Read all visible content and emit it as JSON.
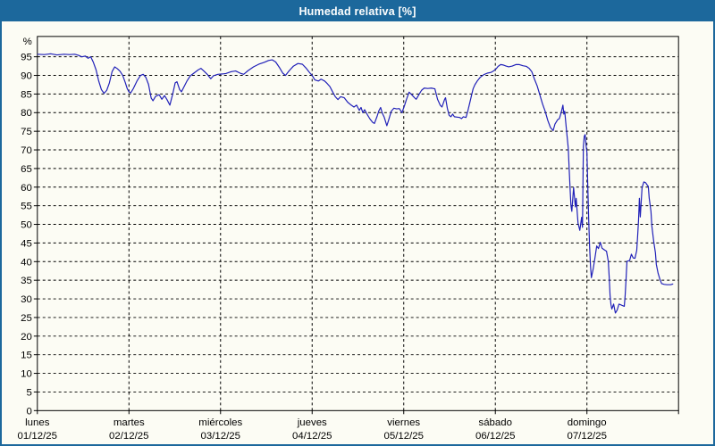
{
  "header": {
    "title": "Humedad relativa [%]"
  },
  "colors": {
    "accent_blue": "#1c689c",
    "background": "#fcfcf4",
    "line_blue": "#2020b8",
    "grid_black": "#000000"
  },
  "chart_data": {
    "type": "line",
    "title": "Humedad relativa [%]",
    "ylabel": "%",
    "ylim": [
      0,
      100.4
    ],
    "y_tick_step": 5,
    "y_ticks": [
      0,
      5,
      10,
      15,
      20,
      25,
      30,
      35,
      40,
      45,
      50,
      55,
      60,
      65,
      70,
      75,
      80,
      85,
      90,
      95
    ],
    "grid": "dashed",
    "legend_position": "none",
    "x_days": [
      {
        "name": "lunes",
        "date": "01/12/25"
      },
      {
        "name": "martes",
        "date": "02/12/25"
      },
      {
        "name": "miércoles",
        "date": "03/12/25"
      },
      {
        "name": "jueves",
        "date": "04/12/25"
      },
      {
        "name": "viernes",
        "date": "05/12/25"
      },
      {
        "name": "sábado",
        "date": "06/12/25"
      },
      {
        "name": "domingo",
        "date": "07/12/25"
      }
    ],
    "series": [
      {
        "name": "Humedad relativa",
        "color": "#2020b8",
        "points": [
          [
            0.0,
            95.7
          ],
          [
            0.078,
            95.6
          ],
          [
            0.146,
            95.8
          ],
          [
            0.214,
            95.5
          ],
          [
            0.291,
            95.7
          ],
          [
            0.35,
            95.6
          ],
          [
            0.408,
            95.7
          ],
          [
            0.447,
            95.4
          ],
          [
            0.485,
            95.0
          ],
          [
            0.524,
            95.2
          ],
          [
            0.553,
            94.6
          ],
          [
            0.583,
            95.0
          ],
          [
            0.612,
            93.5
          ],
          [
            0.641,
            91.5
          ],
          [
            0.67,
            88.5
          ],
          [
            0.699,
            86.2
          ],
          [
            0.728,
            85.2
          ],
          [
            0.757,
            86.0
          ],
          [
            0.786,
            88.0
          ],
          [
            0.816,
            91.0
          ],
          [
            0.845,
            92.3
          ],
          [
            0.874,
            91.8
          ],
          [
            0.903,
            91.1
          ],
          [
            0.932,
            90.0
          ],
          [
            0.961,
            88.0
          ],
          [
            0.981,
            86.5
          ],
          [
            1.0,
            85.6
          ],
          [
            1.019,
            85.3
          ],
          [
            1.049,
            86.5
          ],
          [
            1.087,
            88.5
          ],
          [
            1.126,
            90.0
          ],
          [
            1.155,
            90.3
          ],
          [
            1.184,
            89.5
          ],
          [
            1.214,
            87.6
          ],
          [
            1.243,
            83.9
          ],
          [
            1.262,
            83.2
          ],
          [
            1.291,
            84.4
          ],
          [
            1.33,
            84.8
          ],
          [
            1.359,
            83.6
          ],
          [
            1.388,
            84.6
          ],
          [
            1.417,
            83.4
          ],
          [
            1.447,
            82.0
          ],
          [
            1.476,
            84.8
          ],
          [
            1.505,
            88.0
          ],
          [
            1.524,
            88.3
          ],
          [
            1.553,
            86.2
          ],
          [
            1.573,
            85.6
          ],
          [
            1.602,
            87.0
          ],
          [
            1.631,
            88.4
          ],
          [
            1.67,
            89.9
          ],
          [
            1.718,
            90.8
          ],
          [
            1.757,
            91.5
          ],
          [
            1.786,
            91.9
          ],
          [
            1.825,
            91.0
          ],
          [
            1.854,
            90.3
          ],
          [
            1.893,
            89.1
          ],
          [
            1.922,
            89.9
          ],
          [
            1.971,
            90.3
          ],
          [
            2.019,
            90.4
          ],
          [
            2.058,
            90.5
          ],
          [
            2.117,
            91.0
          ],
          [
            2.165,
            91.2
          ],
          [
            2.214,
            90.6
          ],
          [
            2.252,
            90.3
          ],
          [
            2.301,
            91.3
          ],
          [
            2.359,
            92.3
          ],
          [
            2.417,
            93.0
          ],
          [
            2.476,
            93.5
          ],
          [
            2.524,
            94.0
          ],
          [
            2.563,
            94.2
          ],
          [
            2.602,
            93.6
          ],
          [
            2.641,
            92.2
          ],
          [
            2.68,
            90.6
          ],
          [
            2.709,
            90.0
          ],
          [
            2.748,
            91.2
          ],
          [
            2.796,
            92.5
          ],
          [
            2.845,
            93.2
          ],
          [
            2.893,
            93.0
          ],
          [
            2.932,
            92.0
          ],
          [
            2.971,
            90.8
          ],
          [
            3.0,
            90.0
          ],
          [
            3.029,
            88.8
          ],
          [
            3.068,
            88.5
          ],
          [
            3.097,
            89.0
          ],
          [
            3.136,
            88.5
          ],
          [
            3.165,
            87.8
          ],
          [
            3.194,
            87.0
          ],
          [
            3.223,
            85.6
          ],
          [
            3.252,
            84.3
          ],
          [
            3.282,
            83.5
          ],
          [
            3.311,
            84.3
          ],
          [
            3.35,
            84.0
          ],
          [
            3.388,
            82.8
          ],
          [
            3.427,
            82.0
          ],
          [
            3.456,
            81.5
          ],
          [
            3.485,
            82.0
          ],
          [
            3.515,
            80.6
          ],
          [
            3.534,
            81.4
          ],
          [
            3.553,
            80.0
          ],
          [
            3.573,
            80.8
          ],
          [
            3.602,
            79.5
          ],
          [
            3.631,
            78.3
          ],
          [
            3.66,
            77.4
          ],
          [
            3.68,
            77.1
          ],
          [
            3.709,
            79.0
          ],
          [
            3.728,
            80.5
          ],
          [
            3.748,
            81.4
          ],
          [
            3.767,
            79.8
          ],
          [
            3.786,
            78.8
          ],
          [
            3.816,
            76.5
          ],
          [
            3.835,
            78.0
          ],
          [
            3.864,
            80.4
          ],
          [
            3.893,
            81.2
          ],
          [
            3.922,
            81.0
          ],
          [
            3.951,
            81.1
          ],
          [
            3.981,
            80.0
          ],
          [
            4.01,
            82.0
          ],
          [
            4.029,
            83.5
          ],
          [
            4.058,
            85.5
          ],
          [
            4.087,
            84.8
          ],
          [
            4.117,
            84.0
          ],
          [
            4.136,
            83.6
          ],
          [
            4.165,
            84.8
          ],
          [
            4.194,
            86.0
          ],
          [
            4.223,
            86.6
          ],
          [
            4.262,
            86.5
          ],
          [
            4.301,
            86.6
          ],
          [
            4.34,
            86.4
          ],
          [
            4.369,
            83.6
          ],
          [
            4.398,
            82.0
          ],
          [
            4.417,
            81.5
          ],
          [
            4.447,
            83.6
          ],
          [
            4.456,
            84.0
          ],
          [
            4.476,
            81.2
          ],
          [
            4.495,
            79.3
          ],
          [
            4.515,
            78.9
          ],
          [
            4.534,
            79.6
          ],
          [
            4.553,
            78.9
          ],
          [
            4.583,
            78.8
          ],
          [
            4.612,
            78.7
          ],
          [
            4.631,
            78.4
          ],
          [
            4.65,
            78.9
          ],
          [
            4.68,
            78.7
          ],
          [
            4.699,
            80.4
          ],
          [
            4.718,
            82.4
          ],
          [
            4.738,
            84.4
          ],
          [
            4.757,
            86.4
          ],
          [
            4.777,
            87.5
          ],
          [
            4.806,
            88.6
          ],
          [
            4.835,
            89.5
          ],
          [
            4.874,
            90.2
          ],
          [
            4.913,
            90.6
          ],
          [
            4.951,
            90.8
          ],
          [
            4.981,
            91.2
          ],
          [
            5.01,
            91.8
          ],
          [
            5.029,
            92.4
          ],
          [
            5.058,
            92.9
          ],
          [
            5.087,
            92.8
          ],
          [
            5.117,
            92.5
          ],
          [
            5.146,
            92.3
          ],
          [
            5.184,
            92.5
          ],
          [
            5.223,
            92.9
          ],
          [
            5.262,
            92.9
          ],
          [
            5.301,
            92.6
          ],
          [
            5.34,
            92.4
          ],
          [
            5.369,
            91.9
          ],
          [
            5.398,
            91.0
          ],
          [
            5.427,
            89.0
          ],
          [
            5.456,
            87.2
          ],
          [
            5.485,
            84.8
          ],
          [
            5.515,
            82.4
          ],
          [
            5.544,
            80.4
          ],
          [
            5.573,
            77.9
          ],
          [
            5.602,
            76.0
          ],
          [
            5.631,
            75.2
          ],
          [
            5.65,
            76.9
          ],
          [
            5.68,
            78.1
          ],
          [
            5.699,
            78.4
          ],
          [
            5.718,
            80.0
          ],
          [
            5.738,
            82.0
          ],
          [
            5.748,
            79.6
          ],
          [
            5.757,
            80.4
          ],
          [
            5.777,
            75.3
          ],
          [
            5.796,
            70.5
          ],
          [
            5.806,
            65.0
          ],
          [
            5.816,
            59.9
          ],
          [
            5.825,
            55.1
          ],
          [
            5.835,
            53.5
          ],
          [
            5.854,
            59.9
          ],
          [
            5.874,
            54.7
          ],
          [
            5.883,
            57.0
          ],
          [
            5.903,
            50.3
          ],
          [
            5.922,
            48.4
          ],
          [
            5.942,
            51.9
          ],
          [
            5.951,
            49.2
          ],
          [
            5.961,
            70.9
          ],
          [
            5.971,
            73.7
          ],
          [
            5.981,
            74.1
          ],
          [
            5.99,
            71.3
          ],
          [
            6.0,
            69.3
          ],
          [
            6.01,
            59.9
          ],
          [
            6.019,
            51.1
          ],
          [
            6.029,
            44.0
          ],
          [
            6.039,
            38.9
          ],
          [
            6.049,
            35.7
          ],
          [
            6.068,
            38.0
          ],
          [
            6.087,
            41.0
          ],
          [
            6.107,
            44.2
          ],
          [
            6.126,
            43.5
          ],
          [
            6.146,
            45.2
          ],
          [
            6.165,
            43.6
          ],
          [
            6.194,
            43.1
          ],
          [
            6.214,
            42.8
          ],
          [
            6.233,
            40.1
          ],
          [
            6.243,
            36.0
          ],
          [
            6.252,
            31.0
          ],
          [
            6.262,
            28.5
          ],
          [
            6.272,
            27.3
          ],
          [
            6.291,
            28.6
          ],
          [
            6.311,
            26.2
          ],
          [
            6.33,
            27.0
          ],
          [
            6.35,
            28.6
          ],
          [
            6.369,
            28.4
          ],
          [
            6.388,
            28.2
          ],
          [
            6.408,
            28.0
          ],
          [
            6.417,
            31.0
          ],
          [
            6.427,
            35.3
          ],
          [
            6.437,
            40.1
          ],
          [
            6.466,
            40.3
          ],
          [
            6.485,
            42.0
          ],
          [
            6.505,
            41.0
          ],
          [
            6.524,
            40.9
          ],
          [
            6.544,
            43.0
          ],
          [
            6.553,
            46.8
          ],
          [
            6.563,
            51.0
          ],
          [
            6.573,
            57.0
          ],
          [
            6.583,
            52.0
          ],
          [
            6.592,
            56.0
          ],
          [
            6.602,
            59.9
          ],
          [
            6.621,
            61.4
          ],
          [
            6.641,
            61.2
          ],
          [
            6.66,
            60.5
          ],
          [
            6.67,
            60.2
          ],
          [
            6.68,
            57.1
          ],
          [
            6.699,
            53.5
          ],
          [
            6.709,
            49.6
          ],
          [
            6.728,
            45.6
          ],
          [
            6.748,
            42.4
          ],
          [
            6.757,
            39.3
          ],
          [
            6.777,
            36.9
          ],
          [
            6.796,
            35.3
          ],
          [
            6.816,
            34.1
          ],
          [
            6.845,
            33.9
          ],
          [
            6.874,
            33.8
          ],
          [
            6.913,
            33.8
          ],
          [
            6.942,
            34.0
          ]
        ]
      }
    ]
  }
}
